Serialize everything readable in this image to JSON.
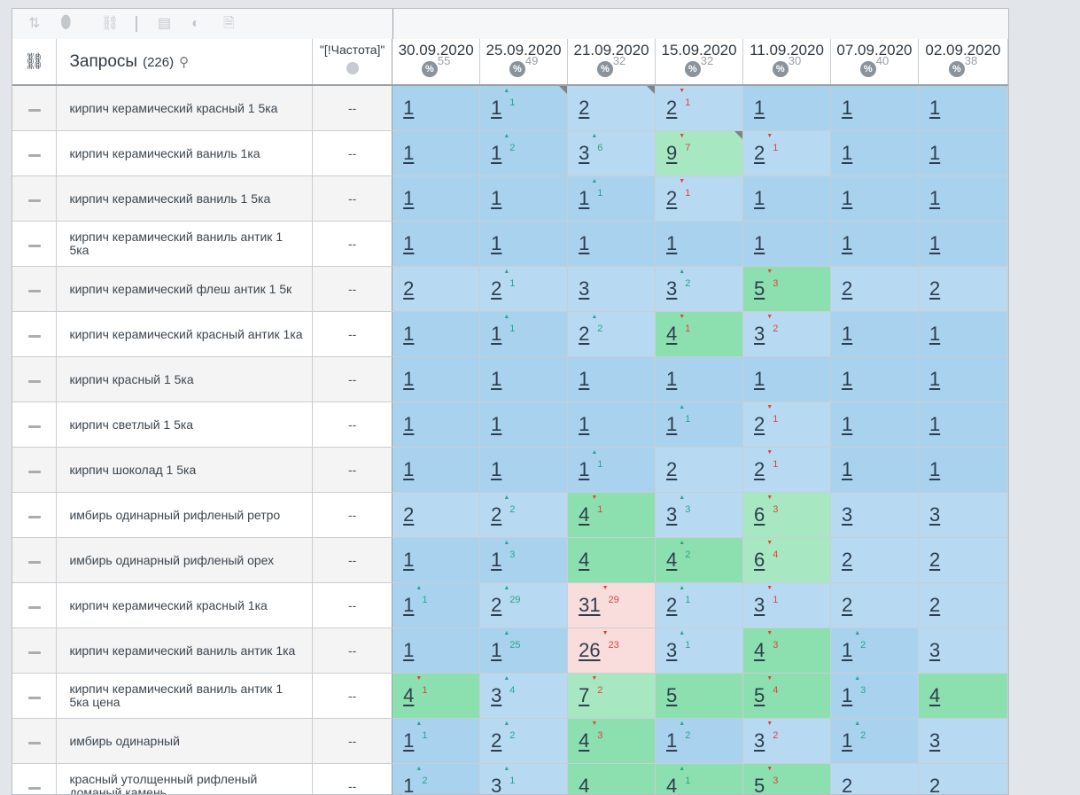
{
  "toolbar": {
    "icons": [
      "sort-icon",
      "toggle-icon",
      "link-icon",
      "table-icon",
      "contrast-icon",
      "font-icon"
    ]
  },
  "header": {
    "queries_title": "Запросы",
    "queries_count": "(226)",
    "frequency_title": "\"[!Частота]\"",
    "dates": [
      {
        "date": "30.09.2020",
        "score": "55"
      },
      {
        "date": "25.09.2020",
        "score": "49"
      },
      {
        "date": "21.09.2020",
        "score": "32"
      },
      {
        "date": "15.09.2020",
        "score": "32"
      },
      {
        "date": "11.09.2020",
        "score": "30"
      },
      {
        "date": "07.09.2020",
        "score": "40"
      },
      {
        "date": "02.09.2020",
        "score": "38"
      }
    ]
  },
  "rows": [
    {
      "query": "кирпич керамический красный 1 5ка",
      "freq": "--",
      "cells": [
        {
          "v": "1",
          "d": "",
          "dir": "",
          "c": "b1"
        },
        {
          "v": "1",
          "d": "1",
          "dir": "up",
          "c": "b1",
          "corner": true
        },
        {
          "v": "2",
          "d": "",
          "dir": "",
          "c": "b2",
          "corner": true
        },
        {
          "v": "2",
          "d": "1",
          "dir": "down",
          "c": "b2"
        },
        {
          "v": "1",
          "d": "",
          "dir": "",
          "c": "b1"
        },
        {
          "v": "1",
          "d": "",
          "dir": "",
          "c": "b1"
        },
        {
          "v": "1",
          "d": "",
          "dir": "",
          "c": "b1"
        }
      ]
    },
    {
      "query": "кирпич керамический ваниль 1ка",
      "freq": "--",
      "cells": [
        {
          "v": "1",
          "d": "",
          "dir": "",
          "c": "b1"
        },
        {
          "v": "1",
          "d": "2",
          "dir": "up",
          "c": "b1"
        },
        {
          "v": "3",
          "d": "6",
          "dir": "up",
          "c": "b2"
        },
        {
          "v": "9",
          "d": "7",
          "dir": "down",
          "c": "g2",
          "corner": true
        },
        {
          "v": "2",
          "d": "1",
          "dir": "down",
          "c": "b2"
        },
        {
          "v": "1",
          "d": "",
          "dir": "",
          "c": "b1"
        },
        {
          "v": "1",
          "d": "",
          "dir": "",
          "c": "b1"
        }
      ]
    },
    {
      "query": "кирпич керамический ваниль 1 5ка",
      "freq": "--",
      "cells": [
        {
          "v": "1",
          "d": "",
          "dir": "",
          "c": "b1"
        },
        {
          "v": "1",
          "d": "",
          "dir": "",
          "c": "b1"
        },
        {
          "v": "1",
          "d": "1",
          "dir": "up",
          "c": "b1"
        },
        {
          "v": "2",
          "d": "1",
          "dir": "down",
          "c": "b2"
        },
        {
          "v": "1",
          "d": "",
          "dir": "",
          "c": "b1"
        },
        {
          "v": "1",
          "d": "",
          "dir": "",
          "c": "b1"
        },
        {
          "v": "1",
          "d": "",
          "dir": "",
          "c": "b1"
        }
      ]
    },
    {
      "query": "кирпич керамический ваниль антик 1 5ка",
      "freq": "--",
      "cells": [
        {
          "v": "1",
          "d": "",
          "dir": "",
          "c": "b1"
        },
        {
          "v": "1",
          "d": "",
          "dir": "",
          "c": "b1"
        },
        {
          "v": "1",
          "d": "",
          "dir": "",
          "c": "b1"
        },
        {
          "v": "1",
          "d": "",
          "dir": "",
          "c": "b1"
        },
        {
          "v": "1",
          "d": "",
          "dir": "",
          "c": "b1"
        },
        {
          "v": "1",
          "d": "",
          "dir": "",
          "c": "b1"
        },
        {
          "v": "1",
          "d": "",
          "dir": "",
          "c": "b1"
        }
      ]
    },
    {
      "query": "кирпич керамический флеш антик 1 5к",
      "freq": "--",
      "cells": [
        {
          "v": "2",
          "d": "",
          "dir": "",
          "c": "b2"
        },
        {
          "v": "2",
          "d": "1",
          "dir": "up",
          "c": "b2"
        },
        {
          "v": "3",
          "d": "",
          "dir": "",
          "c": "b2"
        },
        {
          "v": "3",
          "d": "2",
          "dir": "up",
          "c": "b2"
        },
        {
          "v": "5",
          "d": "3",
          "dir": "down",
          "c": "g1"
        },
        {
          "v": "2",
          "d": "",
          "dir": "",
          "c": "b2"
        },
        {
          "v": "2",
          "d": "",
          "dir": "",
          "c": "b2"
        }
      ]
    },
    {
      "query": "кирпич керамический красный антик 1ка",
      "freq": "--",
      "cells": [
        {
          "v": "1",
          "d": "",
          "dir": "",
          "c": "b1"
        },
        {
          "v": "1",
          "d": "1",
          "dir": "up",
          "c": "b1"
        },
        {
          "v": "2",
          "d": "2",
          "dir": "up",
          "c": "b2"
        },
        {
          "v": "4",
          "d": "1",
          "dir": "down",
          "c": "g1"
        },
        {
          "v": "3",
          "d": "2",
          "dir": "down",
          "c": "b2"
        },
        {
          "v": "1",
          "d": "",
          "dir": "",
          "c": "b1"
        },
        {
          "v": "1",
          "d": "",
          "dir": "",
          "c": "b1"
        }
      ]
    },
    {
      "query": "кирпич красный 1 5ка",
      "freq": "--",
      "cells": [
        {
          "v": "1",
          "d": "",
          "dir": "",
          "c": "b1"
        },
        {
          "v": "1",
          "d": "",
          "dir": "",
          "c": "b1"
        },
        {
          "v": "1",
          "d": "",
          "dir": "",
          "c": "b1"
        },
        {
          "v": "1",
          "d": "",
          "dir": "",
          "c": "b1"
        },
        {
          "v": "1",
          "d": "",
          "dir": "",
          "c": "b1"
        },
        {
          "v": "1",
          "d": "",
          "dir": "",
          "c": "b1"
        },
        {
          "v": "1",
          "d": "",
          "dir": "",
          "c": "b1"
        }
      ]
    },
    {
      "query": "кирпич светлый 1 5ка",
      "freq": "--",
      "cells": [
        {
          "v": "1",
          "d": "",
          "dir": "",
          "c": "b1"
        },
        {
          "v": "1",
          "d": "",
          "dir": "",
          "c": "b1"
        },
        {
          "v": "1",
          "d": "",
          "dir": "",
          "c": "b1"
        },
        {
          "v": "1",
          "d": "1",
          "dir": "up",
          "c": "b1"
        },
        {
          "v": "2",
          "d": "1",
          "dir": "down",
          "c": "b2"
        },
        {
          "v": "1",
          "d": "",
          "dir": "",
          "c": "b1"
        },
        {
          "v": "1",
          "d": "",
          "dir": "",
          "c": "b1"
        }
      ]
    },
    {
      "query": "кирпич шоколад 1 5ка",
      "freq": "--",
      "cells": [
        {
          "v": "1",
          "d": "",
          "dir": "",
          "c": "b1"
        },
        {
          "v": "1",
          "d": "",
          "dir": "",
          "c": "b1"
        },
        {
          "v": "1",
          "d": "1",
          "dir": "up",
          "c": "b1"
        },
        {
          "v": "2",
          "d": "",
          "dir": "",
          "c": "b2"
        },
        {
          "v": "2",
          "d": "1",
          "dir": "down",
          "c": "b2"
        },
        {
          "v": "1",
          "d": "",
          "dir": "",
          "c": "b1"
        },
        {
          "v": "1",
          "d": "",
          "dir": "",
          "c": "b1"
        }
      ]
    },
    {
      "query": "имбирь одинарный рифленый ретро",
      "freq": "--",
      "cells": [
        {
          "v": "2",
          "d": "",
          "dir": "",
          "c": "b2"
        },
        {
          "v": "2",
          "d": "2",
          "dir": "up",
          "c": "b2"
        },
        {
          "v": "4",
          "d": "1",
          "dir": "down",
          "c": "g1"
        },
        {
          "v": "3",
          "d": "3",
          "dir": "up",
          "c": "b2"
        },
        {
          "v": "6",
          "d": "3",
          "dir": "down",
          "c": "g2"
        },
        {
          "v": "3",
          "d": "",
          "dir": "",
          "c": "b2"
        },
        {
          "v": "3",
          "d": "",
          "dir": "",
          "c": "b2"
        }
      ]
    },
    {
      "query": "имбирь одинарный рифленый орех",
      "freq": "--",
      "cells": [
        {
          "v": "1",
          "d": "",
          "dir": "",
          "c": "b1"
        },
        {
          "v": "1",
          "d": "3",
          "dir": "up",
          "c": "b1"
        },
        {
          "v": "4",
          "d": "",
          "dir": "",
          "c": "g1"
        },
        {
          "v": "4",
          "d": "2",
          "dir": "up",
          "c": "g1"
        },
        {
          "v": "6",
          "d": "4",
          "dir": "down",
          "c": "g2"
        },
        {
          "v": "2",
          "d": "",
          "dir": "",
          "c": "b2"
        },
        {
          "v": "2",
          "d": "",
          "dir": "",
          "c": "b2"
        }
      ]
    },
    {
      "query": "кирпич керамический красный 1ка",
      "freq": "--",
      "cells": [
        {
          "v": "1",
          "d": "1",
          "dir": "up",
          "c": "b1"
        },
        {
          "v": "2",
          "d": "29",
          "dir": "up",
          "c": "b2"
        },
        {
          "v": "31",
          "d": "29",
          "dir": "down",
          "c": "p1"
        },
        {
          "v": "2",
          "d": "1",
          "dir": "up",
          "c": "b2"
        },
        {
          "v": "3",
          "d": "1",
          "dir": "down",
          "c": "b2"
        },
        {
          "v": "2",
          "d": "",
          "dir": "",
          "c": "b2"
        },
        {
          "v": "2",
          "d": "",
          "dir": "",
          "c": "b2"
        }
      ]
    },
    {
      "query": "кирпич керамический ваниль антик 1ка",
      "freq": "--",
      "cells": [
        {
          "v": "1",
          "d": "",
          "dir": "",
          "c": "b1"
        },
        {
          "v": "1",
          "d": "25",
          "dir": "up",
          "c": "b1"
        },
        {
          "v": "26",
          "d": "23",
          "dir": "down",
          "c": "p1"
        },
        {
          "v": "3",
          "d": "1",
          "dir": "up",
          "c": "b2"
        },
        {
          "v": "4",
          "d": "3",
          "dir": "down",
          "c": "g1"
        },
        {
          "v": "1",
          "d": "2",
          "dir": "up",
          "c": "b1"
        },
        {
          "v": "3",
          "d": "",
          "dir": "",
          "c": "b2"
        }
      ]
    },
    {
      "query": "кирпич керамический ваниль антик 1 5ка цена",
      "freq": "--",
      "cells": [
        {
          "v": "4",
          "d": "1",
          "dir": "down",
          "c": "g1"
        },
        {
          "v": "3",
          "d": "4",
          "dir": "up",
          "c": "b2"
        },
        {
          "v": "7",
          "d": "2",
          "dir": "down",
          "c": "g2"
        },
        {
          "v": "5",
          "d": "",
          "dir": "",
          "c": "g1"
        },
        {
          "v": "5",
          "d": "4",
          "dir": "down",
          "c": "g1"
        },
        {
          "v": "1",
          "d": "3",
          "dir": "up",
          "c": "b1"
        },
        {
          "v": "4",
          "d": "",
          "dir": "",
          "c": "g1"
        }
      ]
    },
    {
      "query": "имбирь одинарный",
      "freq": "--",
      "cells": [
        {
          "v": "1",
          "d": "1",
          "dir": "up",
          "c": "b1"
        },
        {
          "v": "2",
          "d": "2",
          "dir": "up",
          "c": "b2"
        },
        {
          "v": "4",
          "d": "3",
          "dir": "down",
          "c": "g1"
        },
        {
          "v": "1",
          "d": "2",
          "dir": "up",
          "c": "b1"
        },
        {
          "v": "3",
          "d": "2",
          "dir": "down",
          "c": "b2"
        },
        {
          "v": "1",
          "d": "2",
          "dir": "up",
          "c": "b1"
        },
        {
          "v": "3",
          "d": "",
          "dir": "",
          "c": "b2"
        }
      ]
    },
    {
      "query": "красный утолщенный рифленый доманый камень",
      "freq": "--",
      "cells": [
        {
          "v": "1",
          "d": "2",
          "dir": "up",
          "c": "b1"
        },
        {
          "v": "3",
          "d": "1",
          "dir": "up",
          "c": "b2"
        },
        {
          "v": "4",
          "d": "",
          "dir": "",
          "c": "g1"
        },
        {
          "v": "4",
          "d": "1",
          "dir": "up",
          "c": "g1"
        },
        {
          "v": "5",
          "d": "3",
          "dir": "down",
          "c": "g1"
        },
        {
          "v": "2",
          "d": "",
          "dir": "",
          "c": "b2"
        },
        {
          "v": "2",
          "d": "",
          "dir": "",
          "c": "b2"
        }
      ]
    }
  ]
}
